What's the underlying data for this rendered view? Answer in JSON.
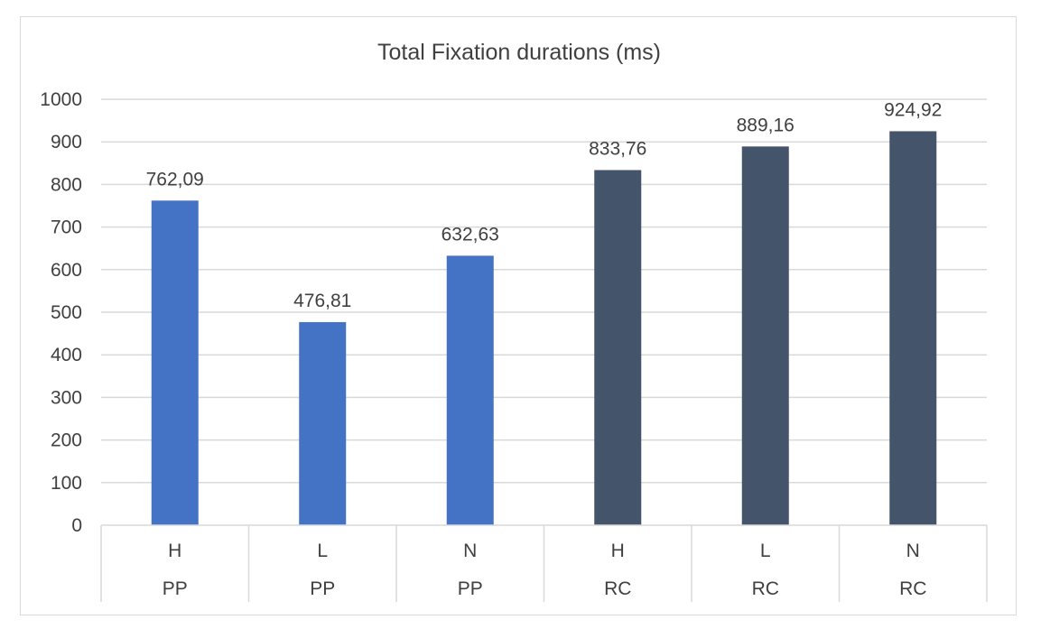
{
  "chart_data": {
    "type": "bar",
    "title": "Total Fixation durations (ms)",
    "xlabel": "",
    "ylabel": "",
    "ylim": [
      0,
      1000
    ],
    "ytick_step": 100,
    "grid": true,
    "legend": "none",
    "categories": [
      {
        "sub": "H",
        "group": "PP"
      },
      {
        "sub": "L",
        "group": "PP"
      },
      {
        "sub": "N",
        "group": "PP"
      },
      {
        "sub": "H",
        "group": "RC"
      },
      {
        "sub": "L",
        "group": "RC"
      },
      {
        "sub": "N",
        "group": "RC"
      }
    ],
    "values": [
      762.09,
      476.81,
      632.63,
      833.76,
      889.16,
      924.92
    ],
    "data_labels": [
      "762,09",
      "476,81",
      "632,63",
      "833,76",
      "889,16",
      "924,92"
    ],
    "colors": {
      "PP": "#4472c4",
      "RC": "#44546a",
      "grid": "#d9d9d9",
      "text": "#404040"
    }
  }
}
